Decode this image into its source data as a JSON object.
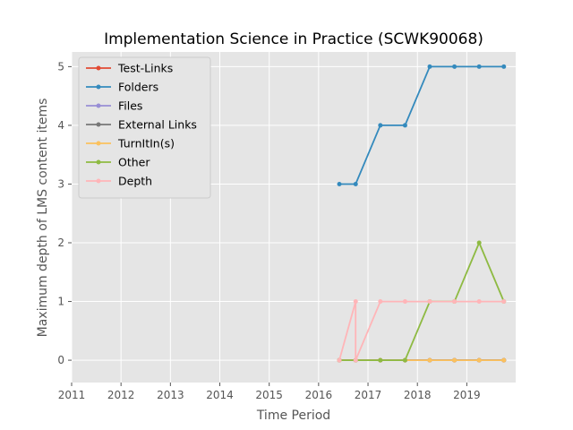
{
  "chart_data": {
    "type": "line",
    "title": "Implementation Science in Practice (SCWK90068)",
    "xlabel": "Time Period",
    "ylabel": "Maximum depth of LMS content items",
    "xlim": [
      2011.0,
      2019.99
    ],
    "ylim": [
      -0.38,
      5.25
    ],
    "x_ticks": [
      2011,
      2012,
      2013,
      2014,
      2015,
      2016,
      2017,
      2018,
      2019
    ],
    "y_ticks": [
      0,
      1,
      2,
      3,
      4,
      5
    ],
    "grid": true,
    "legend_position": "upper-left",
    "series": [
      {
        "name": "Test-Links",
        "color": "#E24A33",
        "x": [
          2016.42,
          2016.75,
          2017.25,
          2017.75,
          2018.25,
          2018.75,
          2019.25,
          2019.75
        ],
        "y": [
          0,
          0,
          0,
          0,
          0,
          0,
          0,
          0
        ]
      },
      {
        "name": "Folders",
        "color": "#348ABD",
        "x": [
          2016.42,
          2016.75,
          2017.25,
          2017.75,
          2018.25,
          2018.75,
          2019.25,
          2019.75
        ],
        "y": [
          3,
          3,
          4,
          4,
          5,
          5,
          5,
          5
        ]
      },
      {
        "name": "Files",
        "color": "#988ED5",
        "x": [
          2016.42,
          2016.75,
          2017.25,
          2017.75,
          2018.25,
          2018.75,
          2019.25,
          2019.75
        ],
        "y": [
          0,
          0,
          0,
          0,
          0,
          0,
          0,
          0
        ]
      },
      {
        "name": "External Links",
        "color": "#777777",
        "x": [
          2016.42,
          2016.75,
          2017.25,
          2017.75,
          2018.25,
          2018.75,
          2019.25,
          2019.75
        ],
        "y": [
          0,
          0,
          0,
          0,
          0,
          0,
          0,
          0
        ]
      },
      {
        "name": "TurnItIn(s)",
        "color": "#FBC15E",
        "x": [
          2016.42,
          2016.75,
          2017.25,
          2017.75,
          2018.25,
          2018.75,
          2019.25,
          2019.75
        ],
        "y": [
          0,
          0,
          0,
          0,
          0,
          0,
          0,
          0
        ]
      },
      {
        "name": "Other",
        "color": "#8EBA42",
        "x": [
          2016.42,
          2016.75,
          2017.25,
          2017.75,
          2018.25,
          2018.75,
          2019.25,
          2019.75
        ],
        "y": [
          0,
          0,
          0,
          0,
          1,
          1,
          2,
          1
        ]
      },
      {
        "name": "Depth",
        "color": "#FFB5B8",
        "x": [
          2016.42,
          2016.75,
          2016.75,
          2017.25,
          2017.75,
          2018.25,
          2018.75,
          2019.25,
          2019.75
        ],
        "y": [
          0,
          1,
          0,
          1,
          1,
          1,
          1,
          1,
          1
        ]
      }
    ]
  }
}
